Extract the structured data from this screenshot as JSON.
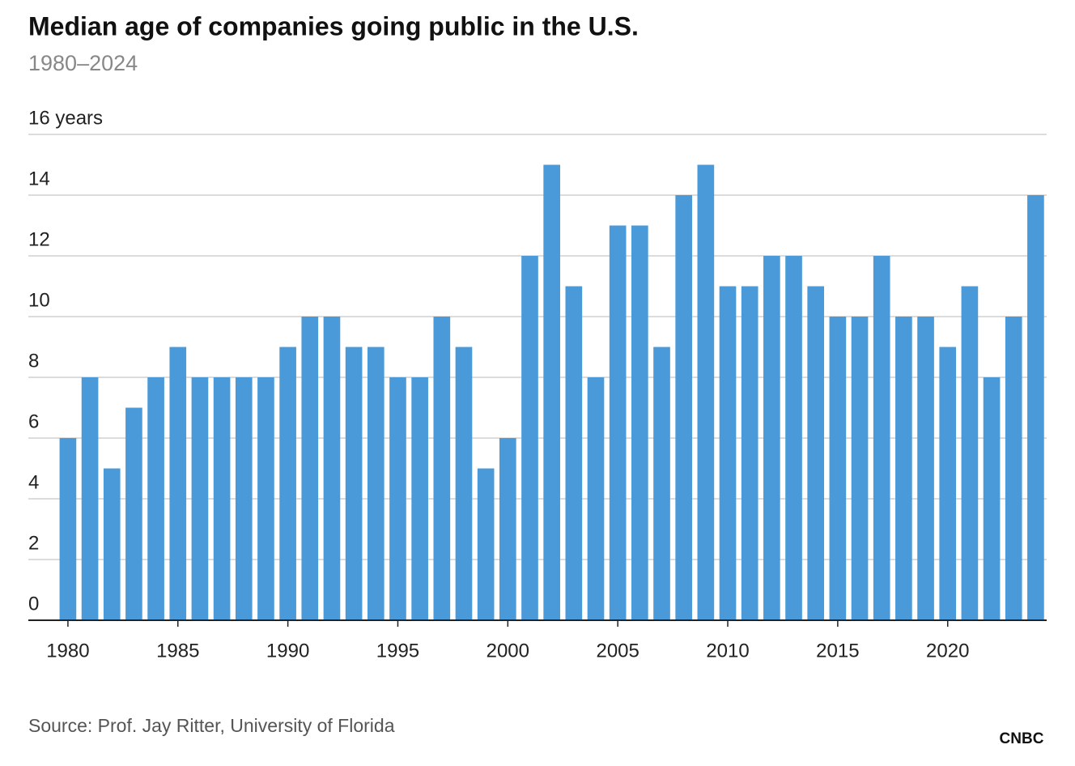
{
  "chart_data": {
    "type": "bar",
    "title": "Median age of companies going public in the U.S.",
    "subtitle": "1980–2024",
    "source": "Source: Prof. Jay Ritter, University of Florida",
    "logo": "CNBC",
    "color": "#4a9ad9",
    "x": [
      1980,
      1981,
      1982,
      1983,
      1984,
      1985,
      1986,
      1987,
      1988,
      1989,
      1990,
      1991,
      1992,
      1993,
      1994,
      1995,
      1996,
      1997,
      1998,
      1999,
      2000,
      2001,
      2002,
      2003,
      2004,
      2005,
      2006,
      2007,
      2008,
      2009,
      2010,
      2011,
      2012,
      2013,
      2014,
      2015,
      2016,
      2017,
      2018,
      2019,
      2020,
      2021,
      2022,
      2023,
      2024
    ],
    "values": [
      6,
      8,
      5,
      7,
      8,
      9,
      8,
      8,
      8,
      8,
      9,
      10,
      10,
      9,
      9,
      8,
      8,
      10,
      9,
      5,
      6,
      12,
      15,
      11,
      8,
      13,
      13,
      9,
      14,
      15,
      11,
      11,
      12,
      12,
      11,
      10,
      10,
      12,
      10,
      10,
      9,
      11,
      8,
      10,
      14
    ],
    "xlim": [
      1978.2,
      2024.5
    ],
    "xticks": [
      1980,
      1985,
      1990,
      1995,
      2000,
      2005,
      2010,
      2015,
      2020
    ],
    "ylim": [
      0,
      16
    ],
    "yticks": [
      0,
      2,
      4,
      6,
      8,
      10,
      12,
      14,
      {
        "value": 16,
        "label": "16 years"
      }
    ],
    "grid": true
  }
}
